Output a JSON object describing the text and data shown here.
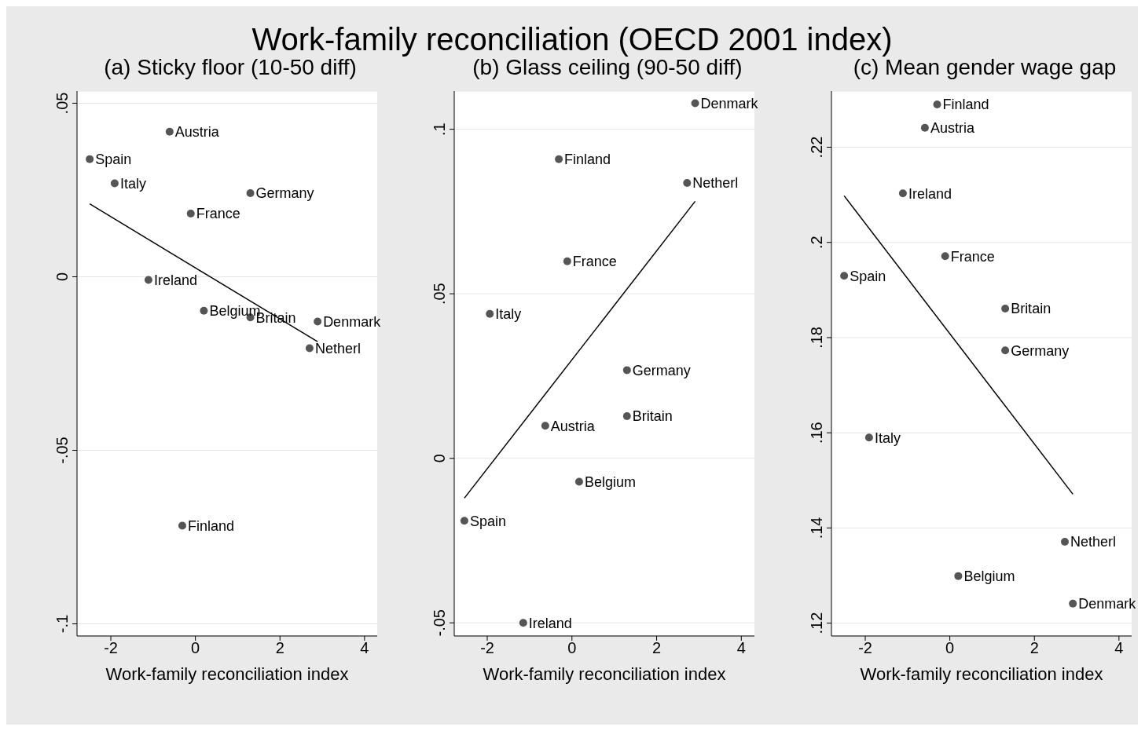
{
  "chart_data": [
    {
      "type": "scatter",
      "title": "(a) Sticky floor (10-50 diff)",
      "xlabel": "Work-family reconciliation index",
      "xlim": [
        -2.8,
        4.3
      ],
      "xticks": [
        -2,
        0,
        2,
        4
      ],
      "ylim": [
        -0.1035,
        0.0535
      ],
      "yticks": [
        {
          "value": 0.05,
          "label": ".05"
        },
        0,
        {
          "value": -0.05,
          "label": "-.05"
        },
        {
          "value": -0.1,
          "label": "-.1"
        }
      ],
      "grid": "y",
      "series": [
        {
          "type": "scatter",
          "marker": "circle",
          "color": "#555555",
          "x": [
            -0.61,
            -2.5,
            -1.91,
            1.3,
            -0.11,
            -1.11,
            0.2,
            1.3,
            2.89,
            2.7,
            -0.31
          ],
          "values": [
            0.0418,
            0.0339,
            0.0269,
            0.0241,
            0.0182,
            -0.0009,
            -0.0098,
            -0.0117,
            -0.0129,
            -0.0206,
            -0.0717
          ]
        },
        {
          "type": "line",
          "marker": "none",
          "color": "#000000",
          "x": [
            -2.5,
            2.89
          ],
          "values": [
            0.021,
            -0.0187
          ]
        }
      ],
      "annotations": [
        "Work-family reconciliation (OECD 2001 index)",
        {
          "text": "Austria",
          "x": -0.61,
          "y": 0.0418
        },
        {
          "text": "Spain",
          "x": -2.5,
          "y": 0.0339
        },
        {
          "text": "Italy",
          "x": -1.91,
          "y": 0.0269
        },
        {
          "text": "Germany",
          "x": 1.3,
          "y": 0.0241
        },
        {
          "text": "France",
          "x": -0.11,
          "y": 0.0182
        },
        {
          "text": "Ireland",
          "x": -1.11,
          "y": -0.0009
        },
        {
          "text": "Belgium",
          "x": 0.2,
          "y": -0.0098
        },
        {
          "text": "Britain",
          "x": 1.3,
          "y": -0.0117
        },
        {
          "text": "Denmark",
          "x": 2.89,
          "y": -0.0129
        },
        {
          "text": "Netherl",
          "x": 2.7,
          "y": -0.0206
        },
        {
          "text": "Finland",
          "x": -0.31,
          "y": -0.0717
        }
      ]
    },
    {
      "type": "scatter",
      "title": "(b) Glass ceiling (90-50 diff)",
      "xlabel": "Work-family reconciliation index",
      "xlim": [
        -2.78,
        4.31
      ],
      "xticks": [
        -2,
        0,
        2,
        4
      ],
      "ylim": [
        -0.054,
        0.1116
      ],
      "yticks": [
        {
          "value": 0.1,
          "label": ".1"
        },
        {
          "value": 0.05,
          "label": ".05"
        },
        0,
        {
          "value": -0.05,
          "label": "-.05"
        }
      ],
      "grid": "y",
      "series": [
        {
          "type": "scatter",
          "marker": "circle",
          "color": "#555555",
          "x": [
            2.91,
            -0.31,
            2.72,
            -0.11,
            -1.94,
            1.3,
            1.3,
            -0.63,
            0.17,
            -2.54,
            -1.15
          ],
          "values": [
            0.1079,
            0.0909,
            0.0837,
            0.0599,
            0.0439,
            0.0268,
            0.0128,
            0.0099,
            -0.0071,
            -0.019,
            -0.05
          ]
        },
        {
          "type": "line",
          "marker": "none",
          "color": "#000000",
          "x": [
            -2.54,
            2.91
          ],
          "values": [
            -0.0121,
            0.0781
          ]
        }
      ],
      "annotations": [
        {
          "text": "Denmark",
          "x": 2.91,
          "y": 0.1079
        },
        {
          "text": "Finland",
          "x": -0.31,
          "y": 0.0909
        },
        {
          "text": "Netherl",
          "x": 2.72,
          "y": 0.0837
        },
        {
          "text": "France",
          "x": -0.11,
          "y": 0.0599
        },
        {
          "text": "Italy",
          "x": -1.94,
          "y": 0.0439
        },
        {
          "text": "Germany",
          "x": 1.3,
          "y": 0.0268
        },
        {
          "text": "Britain",
          "x": 1.3,
          "y": 0.0128
        },
        {
          "text": "Austria",
          "x": -0.63,
          "y": 0.0099
        },
        {
          "text": "Belgium",
          "x": 0.17,
          "y": -0.0071
        },
        {
          "text": "Spain",
          "x": -2.54,
          "y": -0.019
        },
        {
          "text": "Ireland",
          "x": -1.15,
          "y": -0.05
        }
      ]
    },
    {
      "type": "scatter",
      "title": "(c) Mean gender wage gap",
      "xlabel": "Work-family reconciliation index",
      "xlim": [
        -2.8,
        4.3
      ],
      "xticks": [
        -2,
        0,
        2,
        4
      ],
      "ylim": [
        0.1173,
        0.2318
      ],
      "yticks": [
        {
          "value": 0.22,
          "label": ".22"
        },
        {
          "value": 0.2,
          "label": ".2"
        },
        {
          "value": 0.18,
          "label": ".18"
        },
        {
          "value": 0.16,
          "label": ".16"
        },
        {
          "value": 0.14,
          "label": ".14"
        },
        {
          "value": 0.12,
          "label": ".12"
        }
      ],
      "grid": "y",
      "series": [
        {
          "type": "scatter",
          "marker": "circle",
          "color": "#555555",
          "x": [
            -0.3,
            -0.59,
            -1.11,
            -0.11,
            -2.5,
            1.31,
            1.31,
            -1.91,
            2.72,
            0.2,
            2.91
          ],
          "values": [
            0.229,
            0.2241,
            0.2103,
            0.1971,
            0.193,
            0.1861,
            0.1773,
            0.159,
            0.1371,
            0.1299,
            0.1241
          ]
        },
        {
          "type": "line",
          "marker": "none",
          "color": "#000000",
          "x": [
            -2.5,
            2.91
          ],
          "values": [
            0.2098,
            0.1471
          ]
        }
      ],
      "annotations": [
        {
          "text": "Finland",
          "x": -0.3,
          "y": 0.229
        },
        {
          "text": "Austria",
          "x": -0.59,
          "y": 0.2241
        },
        {
          "text": "Ireland",
          "x": -1.11,
          "y": 0.2103
        },
        {
          "text": "France",
          "x": -0.11,
          "y": 0.1971
        },
        {
          "text": "Spain",
          "x": -2.5,
          "y": 0.193
        },
        {
          "text": "Britain",
          "x": 1.31,
          "y": 0.1861
        },
        {
          "text": "Germany",
          "x": 1.31,
          "y": 0.1773
        },
        {
          "text": "Italy",
          "x": -1.91,
          "y": 0.159
        },
        {
          "text": "Netherl",
          "x": 2.72,
          "y": 0.1371
        },
        {
          "text": "Belgium",
          "x": 0.2,
          "y": 0.1299
        },
        {
          "text": "Denmark",
          "x": 2.91,
          "y": 0.1241
        }
      ]
    }
  ]
}
